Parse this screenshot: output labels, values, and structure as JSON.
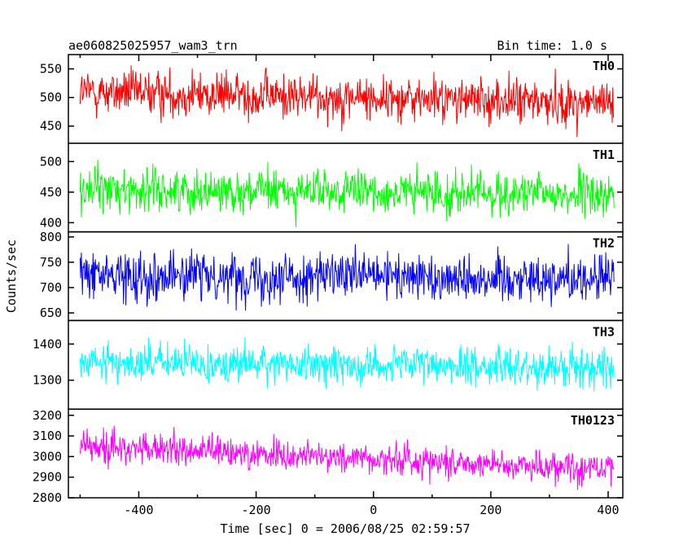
{
  "header": {
    "title": "ae060825025957_wam3_trn",
    "bin_time": "Bin time: 1.0 s"
  },
  "chart_data": {
    "type": "line",
    "xlabel": "Time [sec] 0 = 2006/08/25 02:59:57",
    "ylabel": "Counts/sec",
    "xlim": [
      -520,
      425
    ],
    "x_range_data": [
      -500,
      410
    ],
    "x_step": 1,
    "xticks": [
      -400,
      -200,
      0,
      200,
      400
    ],
    "panels": [
      {
        "name": "TH0",
        "color": "#ff0000",
        "ylim": [
          420,
          575
        ],
        "yticks": [
          450,
          500,
          550
        ],
        "mean_start": 510,
        "mean_end": 490,
        "amplitude": 32
      },
      {
        "name": "TH1",
        "color": "#00ff00",
        "ylim": [
          385,
          530
        ],
        "yticks": [
          400,
          450,
          500
        ],
        "mean_start": 455,
        "mean_end": 445,
        "amplitude": 28
      },
      {
        "name": "TH2",
        "color": "#0000ff",
        "ylim": [
          635,
          810
        ],
        "yticks": [
          650,
          700,
          750,
          800
        ],
        "mean_start": 725,
        "mean_end": 718,
        "amplitude": 38
      },
      {
        "name": "TH3",
        "color": "#00ffff",
        "ylim": [
          1220,
          1465
        ],
        "yticks": [
          1300,
          1400
        ],
        "mean_start": 1350,
        "mean_end": 1335,
        "amplitude": 42
      },
      {
        "name": "TH0123",
        "color": "#ff00ff",
        "ylim": [
          2800,
          3230
        ],
        "yticks": [
          2800,
          2900,
          3000,
          3100,
          3200
        ],
        "mean_start": 3050,
        "mean_end": 2940,
        "amplitude": 62
      }
    ]
  }
}
